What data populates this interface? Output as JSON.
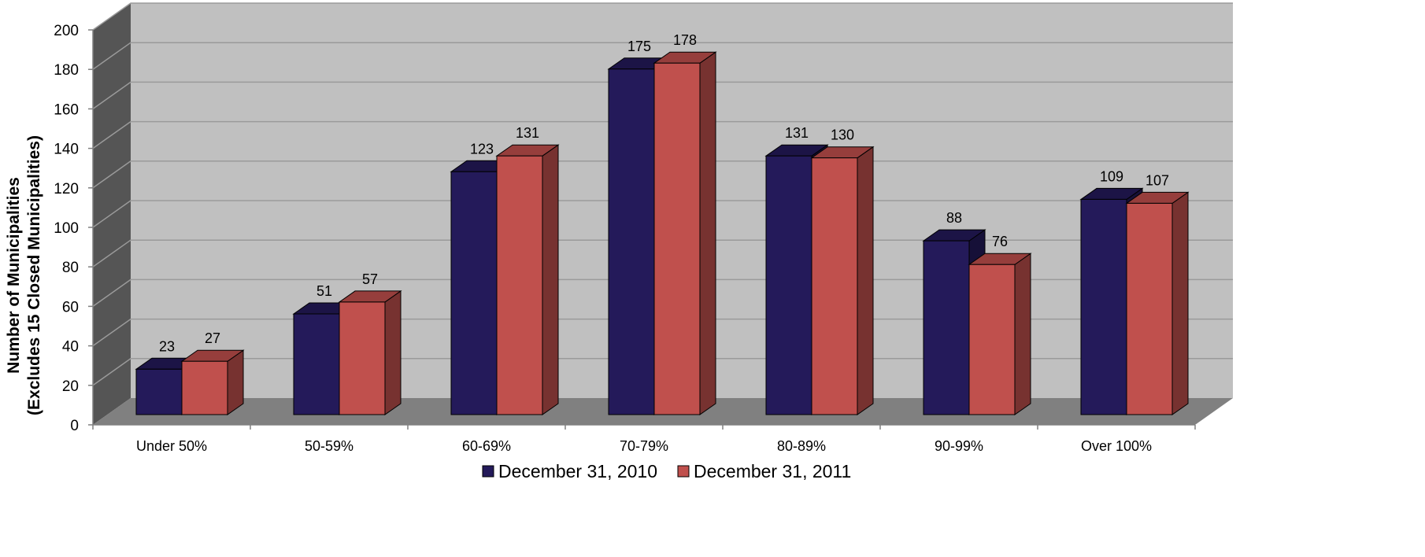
{
  "chart_data": {
    "type": "bar",
    "categories": [
      "Under 50%",
      "50-59%",
      "60-69%",
      "70-79%",
      "80-89%",
      "90-99%",
      "Over 100%"
    ],
    "series": [
      {
        "name": "December 31, 2010",
        "values": [
          23,
          51,
          123,
          175,
          131,
          88,
          109
        ],
        "color": "#241a5a"
      },
      {
        "name": "December 31, 2011",
        "values": [
          27,
          57,
          131,
          178,
          130,
          76,
          107
        ],
        "color": "#c0504d"
      }
    ],
    "ylabel_line1": "Number of Municipalities",
    "ylabel_line2": "(Excludes 15 Closed Municipalities)",
    "ylim": [
      0,
      200
    ],
    "ytick_step": 20,
    "grid": true,
    "legend_position": "bottom",
    "style": "3d-clustered-column",
    "colors": {
      "back_wall": "#c0c0c0",
      "side_wall": "#555555",
      "floor": "#808080"
    }
  }
}
